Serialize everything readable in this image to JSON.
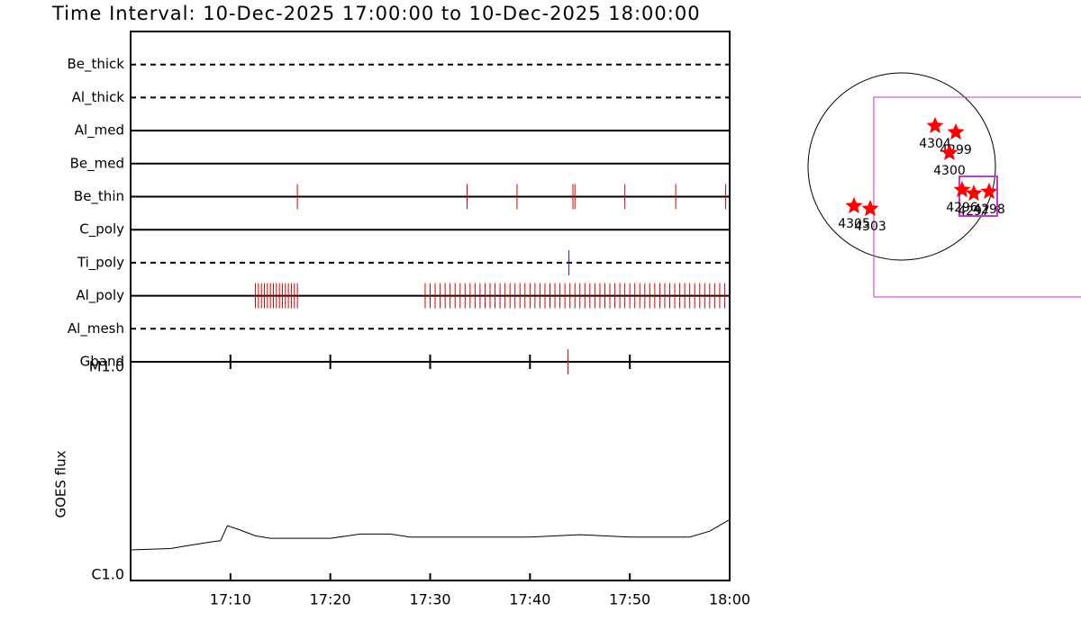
{
  "chart_data": [
    {
      "type": "event",
      "title": "Time Interval: 10-Dec-2025 17:00:00 to 10-Dec-2025 18:00:00",
      "xlim": [
        0,
        60
      ],
      "xticks": [
        {
          "value": 10,
          "label": "17:10"
        },
        {
          "value": 20,
          "label": "17:20"
        },
        {
          "value": 30,
          "label": "17:30"
        },
        {
          "value": 40,
          "label": "17:40"
        },
        {
          "value": 50,
          "label": "17:50"
        },
        {
          "value": 60,
          "label": "18:00"
        }
      ],
      "rows": [
        {
          "name": "Be_thick",
          "style": "dashed",
          "color": "#dd0000",
          "x": []
        },
        {
          "name": "Al_thick",
          "style": "dashed",
          "color": "#dd0000",
          "x": []
        },
        {
          "name": "Al_med",
          "style": "solid",
          "color": "#dd0000",
          "x": []
        },
        {
          "name": "Be_med",
          "style": "solid",
          "color": "#dd0000",
          "x": []
        },
        {
          "name": "Be_thin",
          "style": "solid",
          "color": "#dd0000",
          "x": [
            16.7,
            33.7,
            38.7,
            44.3,
            44.5,
            49.5,
            54.6,
            59.6
          ]
        },
        {
          "name": "C_poly",
          "style": "solid",
          "color": "#dd0000",
          "x": []
        },
        {
          "name": "Ti_poly",
          "style": "dashed",
          "color": "#2222aa",
          "x": [
            43.9
          ]
        },
        {
          "name": "Al_poly",
          "style": "solid",
          "color": "#dd0000",
          "x": [
            12.5,
            12.8,
            13.1,
            13.4,
            13.7,
            14.0,
            14.3,
            14.6,
            14.9,
            15.2,
            15.5,
            15.8,
            16.1,
            16.4,
            16.7,
            29.5,
            30.0,
            30.5,
            31.0,
            31.5,
            32.0,
            32.5,
            33.0,
            33.5,
            34.0,
            34.5,
            35.0,
            35.5,
            36.0,
            36.5,
            37.0,
            37.5,
            38.0,
            38.5,
            39.0,
            39.5,
            40.0,
            40.5,
            41.0,
            41.5,
            42.0,
            42.5,
            43.0,
            43.5,
            44.0,
            44.5,
            45.0,
            45.5,
            46.0,
            46.5,
            47.0,
            47.5,
            48.0,
            48.5,
            49.0,
            49.5,
            50.0,
            50.5,
            51.0,
            51.5,
            52.0,
            52.5,
            53.0,
            53.5,
            54.0,
            54.5,
            55.0,
            55.5,
            56.0,
            56.5,
            57.0,
            57.5,
            58.0,
            58.5,
            59.0,
            59.5
          ]
        },
        {
          "name": "Al_mesh",
          "style": "dashed",
          "color": "#dd0000",
          "x": []
        },
        {
          "name": "Gband",
          "style": "dashed",
          "color": "#dd0000",
          "x": [
            43.8
          ]
        }
      ]
    },
    {
      "type": "line",
      "ylabel": "GOES flux",
      "log": true,
      "xlim": [
        0,
        60
      ],
      "ylim": [
        1e-06,
        1e-05
      ],
      "yticks": [
        {
          "value": 1e-06,
          "label": "C1.0"
        },
        {
          "value": 1e-05,
          "label": "M1.0"
        }
      ],
      "color": "#000000",
      "x": [
        0,
        4,
        6,
        8,
        9,
        9.7,
        11,
        12.5,
        14,
        20,
        23,
        26,
        28,
        40,
        45,
        50,
        56,
        58,
        60
      ],
      "values": [
        1.38e-06,
        1.4e-06,
        1.45e-06,
        1.5e-06,
        1.52e-06,
        1.78e-06,
        1.7e-06,
        1.6e-06,
        1.56e-06,
        1.56e-06,
        1.63e-06,
        1.63e-06,
        1.58e-06,
        1.58e-06,
        1.62e-06,
        1.58e-06,
        1.58e-06,
        1.68e-06,
        1.9e-06
      ]
    },
    {
      "type": "map",
      "color": "#ff0000",
      "regions": [
        {
          "label": "4304",
          "x": 342,
          "y": 416
        },
        {
          "label": "4299",
          "x": 554,
          "y": 351
        },
        {
          "label": "4300",
          "x": 489,
          "y": 139
        },
        {
          "label": "4296",
          "x": 619,
          "y": -240
        },
        {
          "label": "4297",
          "x": 739,
          "y": -277
        },
        {
          "label": "4298",
          "x": 896,
          "y": -259
        },
        {
          "label": "4305",
          "x": -489,
          "y": -406
        },
        {
          "label": "4303",
          "x": -323,
          "y": -434
        }
      ]
    }
  ]
}
